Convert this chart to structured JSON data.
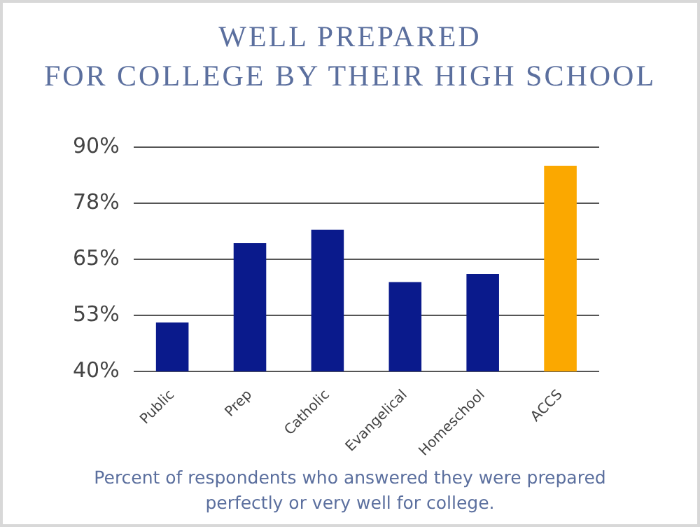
{
  "chart_data": {
    "type": "bar",
    "title": "WELL PREPARED\nFOR COLLEGE BY THEIR HIGH SCHOOL",
    "categories": [
      "Public",
      "Prep",
      "Catholic",
      "Evangelical",
      "Homeschool",
      "ACCS"
    ],
    "values": [
      50.9,
      68.6,
      71.6,
      59.9,
      61.7,
      85.8
    ],
    "colors": [
      "#0a1a8c",
      "#0a1a8c",
      "#0a1a8c",
      "#0a1a8c",
      "#0a1a8c",
      "#fba800"
    ],
    "ylim": [
      40,
      90
    ],
    "yticks": [
      {
        "value": 40,
        "label": "40%"
      },
      {
        "value": 52.5,
        "label": "53%"
      },
      {
        "value": 65,
        "label": "65%"
      },
      {
        "value": 77.5,
        "label": "78%"
      },
      {
        "value": 90,
        "label": "90%"
      }
    ],
    "grid": "y",
    "annotations": [
      "Percent of respondents who answered they were prepared perfectly or very well for college."
    ]
  }
}
